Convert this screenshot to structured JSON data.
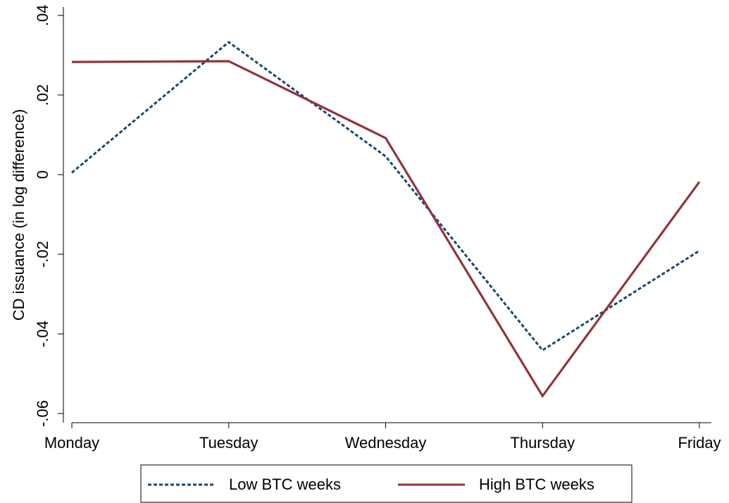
{
  "chart_data": {
    "type": "line",
    "y_label": "CD issuance (in log difference)",
    "categories": [
      "Monday",
      "Tuesday",
      "Wednesday",
      "Thursday",
      "Friday"
    ],
    "series": [
      {
        "name": "Low BTC weeks",
        "color": "#1a476f",
        "dash": true,
        "values": [
          0.0005,
          0.0333,
          0.0046,
          -0.0441,
          -0.0191
        ]
      },
      {
        "name": "High BTC weeks",
        "color": "#90353b",
        "dash": false,
        "values": [
          0.0283,
          0.0285,
          0.0092,
          -0.0556,
          -0.0018
        ]
      }
    ],
    "ylim": [
      -0.0623,
      0.0421
    ],
    "yticks": [
      {
        "value": -0.06,
        "label": "-.06"
      },
      {
        "value": -0.04,
        "label": "-.04"
      },
      {
        "value": -0.02,
        "label": "-.02"
      },
      0,
      {
        "value": 0.02,
        "label": ".02"
      },
      {
        "value": 0.04,
        "label": ".04"
      }
    ],
    "grid": false
  }
}
